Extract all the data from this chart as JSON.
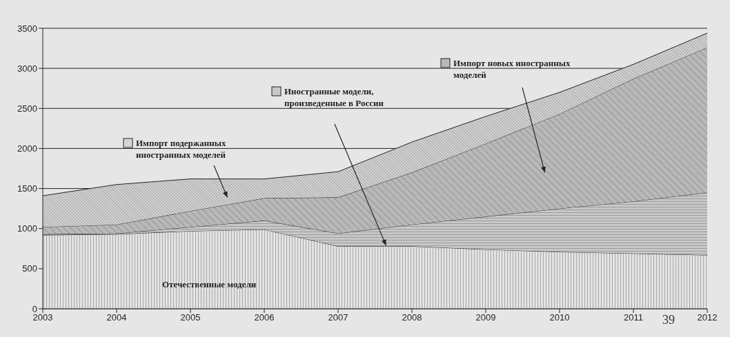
{
  "chart_data": {
    "type": "area",
    "stacked": true,
    "x": [
      2003,
      2004,
      2005,
      2006,
      2007,
      2008,
      2009,
      2010,
      2011,
      2012
    ],
    "xlim": [
      2003,
      2012
    ],
    "xticks": [
      2003,
      2004,
      2005,
      2006,
      2007,
      2008,
      2009,
      2010,
      2011,
      2012
    ],
    "ylim": [
      0,
      3500
    ],
    "yticks": [
      0,
      500,
      1000,
      1500,
      2000,
      2500,
      3000,
      3500
    ],
    "grid": "y",
    "legend": "top",
    "series": [
      {
        "name": "Отечественные модели",
        "color": "#e3e3e3",
        "values": [
          920,
          930,
          970,
          990,
          780,
          780,
          740,
          710,
          690,
          670
        ]
      },
      {
        "name": "Иностранные модели, произведенные в России",
        "color": "#c8c8c8",
        "values": [
          10,
          10,
          50,
          110,
          160,
          270,
          410,
          540,
          650,
          780
        ]
      },
      {
        "name": "Импорт новых иностранных моделей",
        "color": "#b8b8b8",
        "values": [
          90,
          110,
          200,
          280,
          450,
          650,
          910,
          1180,
          1530,
          1810
        ]
      },
      {
        "name": "Импорт подержанных иностранных моделей",
        "color": "#d6d6d6",
        "values": [
          390,
          500,
          400,
          240,
          320,
          380,
          340,
          270,
          180,
          180
        ]
      }
    ],
    "annotations": [
      "39"
    ]
  }
}
